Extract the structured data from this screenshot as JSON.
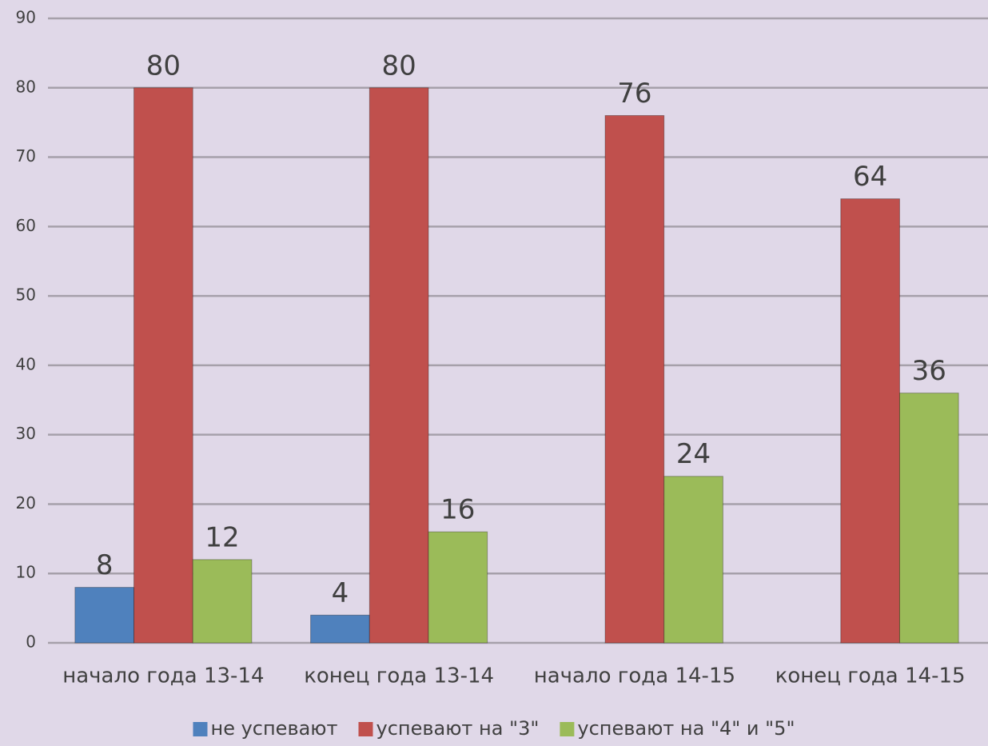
{
  "chart_data": {
    "type": "bar",
    "categories": [
      "начало года 13-14",
      "конец года 13-14",
      "начало года 14-15",
      "конец года 14-15"
    ],
    "series": [
      {
        "name": "не успевают",
        "color": "#4f81bd",
        "values": [
          8,
          4,
          null,
          null
        ]
      },
      {
        "name": "успевают на \"3\"",
        "color": "#c0504d",
        "values": [
          80,
          80,
          76,
          64
        ]
      },
      {
        "name": "успевают на \"4\" и \"5\"",
        "color": "#9bbb59",
        "values": [
          12,
          16,
          24,
          36
        ]
      }
    ],
    "ylim": [
      0,
      90
    ],
    "yticks": [
      0,
      10,
      20,
      30,
      40,
      50,
      60,
      70,
      80,
      90
    ],
    "grid": true,
    "legend": "bottom"
  }
}
